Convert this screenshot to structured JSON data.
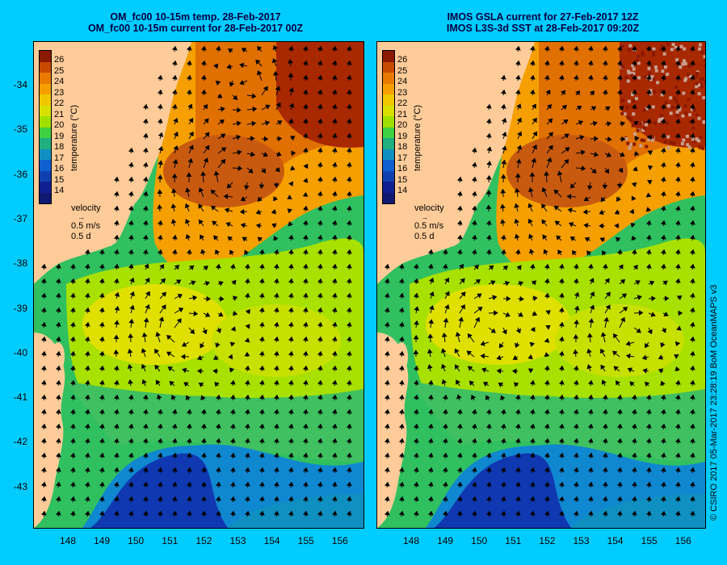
{
  "left_panel": {
    "title_line1": "OM_fc00 10-15m temp. 28-Feb-2017",
    "title_line2": "OM_fc00 10-15m current for 28-Feb-2017 00Z"
  },
  "right_panel": {
    "title_line1": "IMOS GSLA current for 27-Feb-2017 12Z",
    "title_line2": "IMOS L3S-3d SST at 28-Feb-2017 09:20Z"
  },
  "y_axis_labels": [
    "-34",
    "-35",
    "-36",
    "-37",
    "-38",
    "-39",
    "-40",
    "-41",
    "-42",
    "-43"
  ],
  "x_axis_labels": [
    "148",
    "149",
    "150",
    "151",
    "152",
    "153",
    "154",
    "155",
    "156"
  ],
  "colorbar": {
    "title": "temperature (°C)",
    "ticks": [
      "26",
      "25",
      "24",
      "23",
      "22",
      "21",
      "20",
      "19",
      "18",
      "17",
      "16",
      "15",
      "14"
    ],
    "colors": [
      "#8b1a00",
      "#c84a00",
      "#e87a00",
      "#f5a000",
      "#f0c800",
      "#d8e000",
      "#a0e000",
      "#40d040",
      "#20b080",
      "#1090c0",
      "#1060d0",
      "#1040b0",
      "#102090",
      "#101870"
    ]
  },
  "velocity_legend": {
    "label": "velocity",
    "speed": "0.5 m/s",
    "duration": "0.5 d"
  },
  "credit": "© CSIRO 2017   05-Mar-2017 23:28:19 BoM OceanMAPS v3",
  "colors": {
    "background": "#00ccff",
    "land": "#ffcc99"
  }
}
